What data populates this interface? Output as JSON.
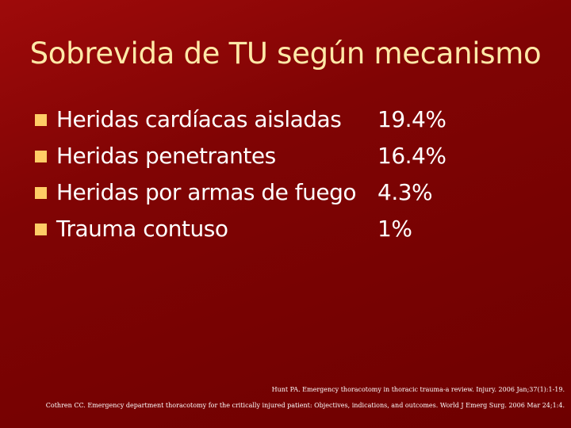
{
  "slide": {
    "title": "Sobrevida de TU según mecanismo",
    "items": [
      {
        "label": "Heridas cardíacas aisladas",
        "value": "19.4%"
      },
      {
        "label": "Heridas penetrantes",
        "value": "16.4%"
      },
      {
        "label": "Heridas por armas de fuego",
        "value": "4.3%"
      },
      {
        "label": "Trauma contuso",
        "value": "1%"
      }
    ],
    "references": [
      "Hunt PA. Emergency thoracotomy in thoracic trauma-a review. Injury. 2006 Jan;37(1):1-19.",
      "Cothren CC. Emergency department thoracotomy for the critically injured patient: Objectives, indications, and outcomes. World J Emerg Surg. 2006 Mar 24;1:4."
    ]
  },
  "colors": {
    "background": "#800404",
    "title": "#ffe9a8",
    "bullet": "#ffcc66",
    "text": "#ffffff"
  }
}
